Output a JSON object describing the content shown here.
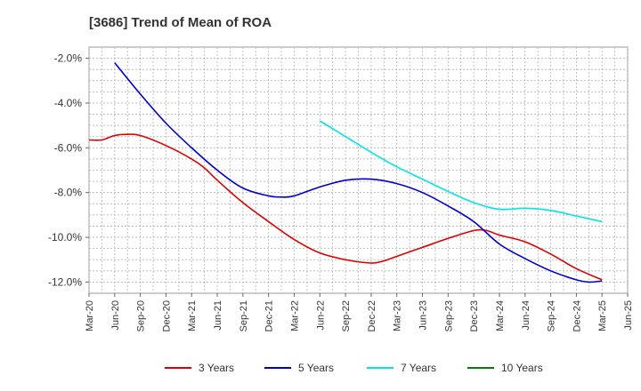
{
  "chart_data": {
    "type": "line",
    "title": "[3686]  Trend of Mean of ROA",
    "xlabel": "",
    "ylabel": "",
    "x_ticks": [
      "Mar-20",
      "Jun-20",
      "Sep-20",
      "Dec-20",
      "Mar-21",
      "Jun-21",
      "Sep-21",
      "Dec-21",
      "Mar-22",
      "Jun-22",
      "Sep-22",
      "Dec-22",
      "Mar-23",
      "Jun-23",
      "Sep-23",
      "Dec-23",
      "Mar-24",
      "Jun-24",
      "Sep-24",
      "Dec-24",
      "Mar-25",
      "Jun-25"
    ],
    "y_ticks": [
      "-2.0%",
      "-4.0%",
      "-6.0%",
      "-8.0%",
      "-10.0%",
      "-12.0%"
    ],
    "y_tick_values": [
      -2,
      -4,
      -6,
      -8,
      -10,
      -12
    ],
    "ylim": [
      -12.5,
      -1.5
    ],
    "grid": true,
    "legend_position": "bottom",
    "series": [
      {
        "name": "3 Years",
        "color": "#dd0000",
        "values": [
          [
            0,
            -5.65
          ],
          [
            0.5,
            -5.65
          ],
          [
            1,
            -5.45
          ],
          [
            1.5,
            -5.4
          ],
          [
            2,
            -5.45
          ],
          [
            3,
            -5.9
          ],
          [
            4,
            -6.5
          ],
          [
            4.5,
            -6.9
          ],
          [
            5,
            -7.45
          ],
          [
            6,
            -8.45
          ],
          [
            7,
            -9.3
          ],
          [
            8,
            -10.1
          ],
          [
            9,
            -10.7
          ],
          [
            10,
            -11.0
          ],
          [
            11,
            -11.15
          ],
          [
            11.5,
            -11.05
          ],
          [
            12,
            -10.85
          ],
          [
            13,
            -10.45
          ],
          [
            14,
            -10.05
          ],
          [
            15,
            -9.7
          ],
          [
            15.5,
            -9.7
          ],
          [
            16,
            -9.9
          ],
          [
            17,
            -10.2
          ],
          [
            18,
            -10.75
          ],
          [
            19,
            -11.4
          ],
          [
            20,
            -11.9
          ]
        ]
      },
      {
        "name": "5 Years",
        "color": "#0000cc",
        "values": [
          [
            1,
            -2.2
          ],
          [
            2,
            -3.6
          ],
          [
            3,
            -4.9
          ],
          [
            4,
            -6.0
          ],
          [
            5,
            -7.0
          ],
          [
            6,
            -7.8
          ],
          [
            7,
            -8.15
          ],
          [
            7.5,
            -8.2
          ],
          [
            8,
            -8.15
          ],
          [
            9,
            -7.75
          ],
          [
            10,
            -7.45
          ],
          [
            11,
            -7.4
          ],
          [
            12,
            -7.6
          ],
          [
            13,
            -8.0
          ],
          [
            14,
            -8.6
          ],
          [
            15,
            -9.3
          ],
          [
            16,
            -10.3
          ],
          [
            17,
            -10.95
          ],
          [
            18,
            -11.5
          ],
          [
            19,
            -11.9
          ],
          [
            19.5,
            -12.0
          ],
          [
            20,
            -11.95
          ]
        ]
      },
      {
        "name": "7 Years",
        "color": "#00e5e5",
        "values": [
          [
            9,
            -4.8
          ],
          [
            10,
            -5.5
          ],
          [
            11,
            -6.2
          ],
          [
            12,
            -6.85
          ],
          [
            13,
            -7.4
          ],
          [
            14,
            -7.95
          ],
          [
            15,
            -8.45
          ],
          [
            16,
            -8.75
          ],
          [
            17,
            -8.7
          ],
          [
            18,
            -8.8
          ],
          [
            19,
            -9.05
          ],
          [
            20,
            -9.3
          ]
        ]
      },
      {
        "name": "10 Years",
        "color": "#008000",
        "values": []
      }
    ]
  }
}
